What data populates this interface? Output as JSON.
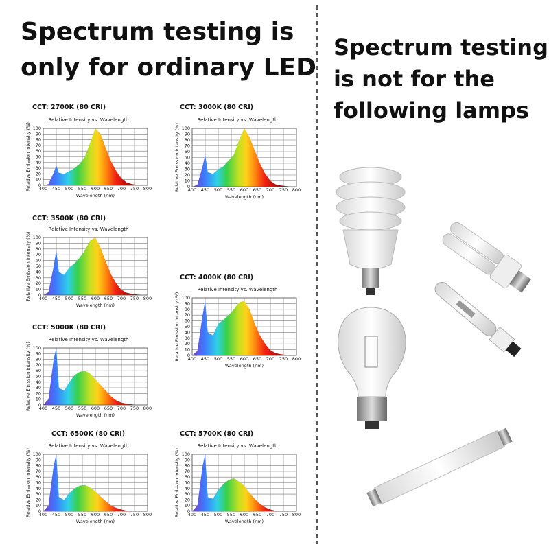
{
  "left_heading": [
    "Spectrum testing is",
    "only for ordinary LED"
  ],
  "right_heading": [
    "Spectrum testing",
    "is not for the",
    "following lamps"
  ],
  "chart_data": [
    {
      "type": "area",
      "title": "CCT: 2700K (80 CRI)",
      "subtitle": "Relative Intensity vs. Wavelength",
      "x_label": "Wavelength  (nm)",
      "y_label": "Relative Emission Intensity  (%)",
      "x": [
        400,
        420,
        440,
        450,
        460,
        480,
        500,
        520,
        540,
        560,
        580,
        600,
        620,
        640,
        660,
        680,
        700,
        720,
        740,
        760,
        780,
        800
      ],
      "values": [
        0,
        2,
        22,
        35,
        22,
        20,
        25,
        30,
        38,
        50,
        75,
        100,
        90,
        65,
        42,
        25,
        12,
        5,
        2,
        1,
        0,
        0
      ],
      "xlim": [
        400,
        800
      ],
      "xticks": [
        400,
        450,
        500,
        550,
        600,
        650,
        700,
        750,
        800
      ],
      "ylim": [
        0,
        100
      ],
      "yticks": [
        0,
        10,
        20,
        30,
        40,
        50,
        60,
        70,
        80,
        90,
        100
      ],
      "grid": true
    },
    {
      "type": "area",
      "title": "CCT: 3000K (80 CRI)",
      "subtitle": "Relative Intensity vs. Wavelength",
      "x_label": "Wavelength  (nm)",
      "y_label": "Relative Emission Intensity  (%)",
      "x": [
        400,
        420,
        440,
        450,
        460,
        480,
        500,
        520,
        540,
        560,
        580,
        600,
        620,
        640,
        660,
        680,
        700,
        720,
        740,
        760,
        780,
        800
      ],
      "values": [
        0,
        3,
        35,
        55,
        25,
        22,
        30,
        35,
        45,
        55,
        80,
        100,
        85,
        62,
        40,
        22,
        10,
        4,
        2,
        1,
        0,
        0
      ],
      "xlim": [
        400,
        800
      ],
      "xticks": [
        400,
        450,
        500,
        550,
        600,
        650,
        700,
        750,
        800
      ],
      "ylim": [
        0,
        100
      ],
      "yticks": [
        0,
        10,
        20,
        30,
        40,
        50,
        60,
        70,
        80,
        90,
        100
      ],
      "grid": true
    },
    {
      "type": "area",
      "title": "CCT: 3500K (80 CRI)",
      "subtitle": "Relative Intensity vs. Wavelength",
      "x_label": "Wavelength  (nm)",
      "y_label": "Relative Emission Intensity  (%)",
      "x": [
        400,
        420,
        440,
        450,
        460,
        480,
        500,
        520,
        540,
        560,
        580,
        600,
        620,
        640,
        660,
        680,
        700,
        720,
        740,
        760,
        780,
        800
      ],
      "values": [
        0,
        5,
        50,
        78,
        40,
        35,
        48,
        55,
        65,
        78,
        95,
        100,
        82,
        58,
        36,
        20,
        9,
        4,
        2,
        1,
        0,
        0
      ],
      "xlim": [
        400,
        800
      ],
      "xticks": [
        400,
        450,
        500,
        550,
        600,
        650,
        700,
        750,
        800
      ],
      "ylim": [
        0,
        100
      ],
      "yticks": [
        0,
        10,
        20,
        30,
        40,
        50,
        60,
        70,
        80,
        90,
        100
      ],
      "grid": true
    },
    {
      "type": "area",
      "title": "CCT: 4000K (80 CRI)",
      "subtitle": "Relative Intensity vs. Wavelength",
      "x_label": "Wavelength  (nm)",
      "y_label": "Relative Emission Intensity  (%)",
      "x": [
        400,
        420,
        440,
        450,
        460,
        480,
        500,
        520,
        540,
        560,
        580,
        600,
        620,
        640,
        660,
        680,
        700,
        720,
        740,
        760,
        780,
        800
      ],
      "values": [
        0,
        8,
        70,
        95,
        40,
        35,
        55,
        62,
        70,
        80,
        92,
        95,
        80,
        55,
        35,
        20,
        9,
        4,
        2,
        1,
        0,
        0
      ],
      "xlim": [
        400,
        800
      ],
      "xticks": [
        400,
        450,
        500,
        550,
        600,
        650,
        700,
        750,
        800
      ],
      "ylim": [
        0,
        100
      ],
      "yticks": [
        0,
        10,
        20,
        30,
        40,
        50,
        60,
        70,
        80,
        90,
        100
      ],
      "grid": true
    },
    {
      "type": "area",
      "title": "CCT: 5000K (80 CRI)",
      "subtitle": "Relative Intensity vs. Wavelength",
      "x_label": "Wavelength  (nm)",
      "y_label": "Relative Emission Intensity  (%)",
      "x": [
        400,
        420,
        440,
        450,
        460,
        480,
        500,
        520,
        540,
        560,
        580,
        600,
        620,
        640,
        660,
        680,
        700,
        720,
        740,
        760,
        780,
        800
      ],
      "values": [
        0,
        10,
        80,
        100,
        30,
        25,
        40,
        52,
        58,
        60,
        55,
        45,
        35,
        25,
        15,
        8,
        4,
        2,
        1,
        0,
        0,
        0
      ],
      "xlim": [
        400,
        800
      ],
      "xticks": [
        400,
        450,
        500,
        550,
        600,
        650,
        700,
        750,
        800
      ],
      "ylim": [
        0,
        100
      ],
      "yticks": [
        0,
        10,
        20,
        30,
        40,
        50,
        60,
        70,
        80,
        90,
        100
      ],
      "grid": true
    },
    {
      "type": "area",
      "title": "CCT: 6500K (80 CRI)",
      "subtitle": "Relative Intensity vs. Wavelength",
      "x_label": "Wavelength  (nm)",
      "y_label": "Relative Emission Intensity  (%)",
      "x": [
        400,
        420,
        440,
        450,
        460,
        480,
        500,
        520,
        540,
        560,
        580,
        600,
        620,
        640,
        660,
        680,
        700,
        720,
        740,
        760,
        780,
        800
      ],
      "values": [
        0,
        10,
        80,
        100,
        25,
        20,
        32,
        40,
        45,
        46,
        42,
        35,
        26,
        18,
        10,
        6,
        3,
        1,
        0,
        0,
        0,
        0
      ],
      "xlim": [
        400,
        800
      ],
      "xticks": [
        400,
        450,
        500,
        550,
        600,
        650,
        700,
        750,
        800
      ],
      "ylim": [
        0,
        100
      ],
      "yticks": [
        0,
        10,
        20,
        30,
        40,
        50,
        60,
        70,
        80,
        90,
        100
      ],
      "grid": true
    },
    {
      "type": "area",
      "title": "CCT: 5700K (80 CRI)",
      "subtitle": "Relative Intensity vs. Wavelength",
      "x_label": "Wavelength  (nm)",
      "y_label": "Relative Emission Intensity  (%)",
      "x": [
        400,
        420,
        440,
        450,
        460,
        480,
        500,
        520,
        540,
        560,
        580,
        600,
        620,
        640,
        660,
        680,
        700,
        720,
        740,
        760,
        780,
        800
      ],
      "values": [
        0,
        10,
        80,
        100,
        25,
        22,
        38,
        48,
        55,
        58,
        52,
        45,
        32,
        22,
        13,
        7,
        3,
        1,
        0,
        0,
        0,
        0
      ],
      "xlim": [
        400,
        800
      ],
      "xticks": [
        400,
        450,
        500,
        550,
        600,
        650,
        700,
        750,
        800
      ],
      "ylim": [
        0,
        100
      ],
      "yticks": [
        0,
        10,
        20,
        30,
        40,
        50,
        60,
        70,
        80,
        90,
        100
      ],
      "grid": true
    }
  ]
}
